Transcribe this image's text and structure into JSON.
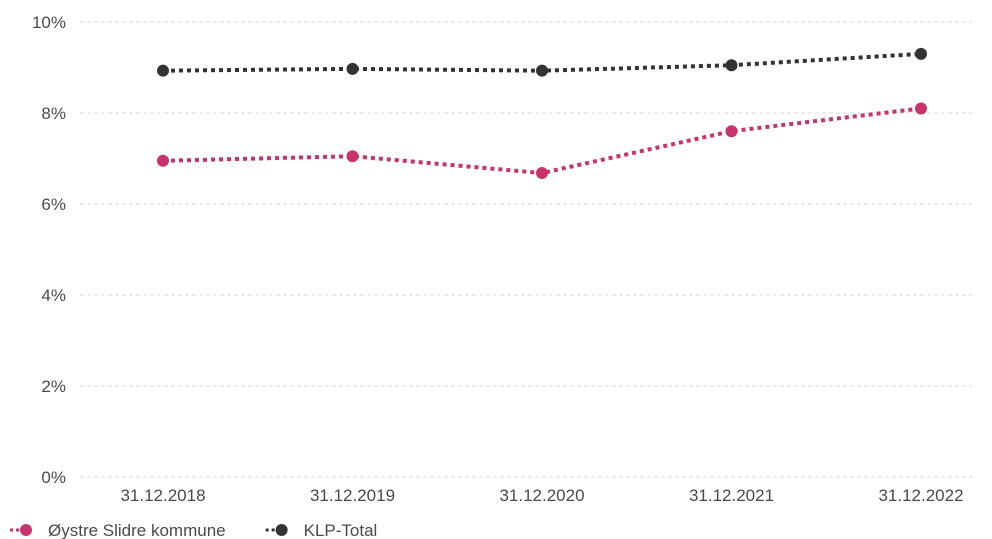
{
  "chart_data": {
    "type": "line",
    "title": "",
    "xlabel": "",
    "ylabel": "",
    "categories": [
      "31.12.2018",
      "31.12.2019",
      "31.12.2020",
      "31.12.2021",
      "31.12.2022"
    ],
    "series": [
      {
        "name": "Øystre Slidre kommune",
        "color": "#c8336e",
        "line_style": "dotted",
        "values": [
          6.95,
          7.05,
          6.68,
          7.6,
          8.1
        ]
      },
      {
        "name": "KLP-Total",
        "color": "#333333",
        "line_style": "dotted",
        "values": [
          8.93,
          8.97,
          8.93,
          9.05,
          9.3
        ]
      }
    ],
    "ylim": [
      0,
      10
    ],
    "yticks": [
      0,
      2,
      4,
      6,
      8,
      10
    ],
    "ytick_labels": [
      "0%",
      "2%",
      "4%",
      "6%",
      "8%",
      "10%"
    ],
    "grid": true,
    "grid_style": "dashed",
    "grid_color": "#d9d9d9",
    "legend_position": "bottom-left"
  }
}
